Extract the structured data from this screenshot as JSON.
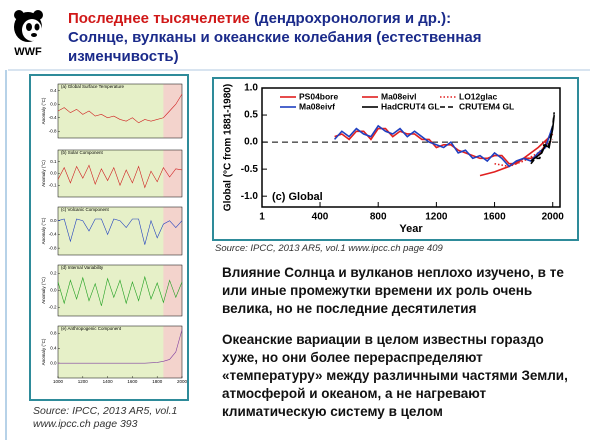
{
  "logo": "WWF",
  "header": {
    "title_red": "Последнее тысячелетие",
    "title_rest": "(дендрохронология и др.):",
    "title_line2": "Солнце, вулканы  и океанские колебания (естественная изменчивость)"
  },
  "left_source": [
    "Source: IPCC, 2013 AR5, vol.1",
    "www.ipcc.ch page 393"
  ],
  "right_source": "Source: IPCC, 2013 AR5, vol.1 www.ipcc.ch page 409",
  "paragraphs": [
    "Влияние Солнца и вулканов неплохо изучено, в те или иные промежутки времени их роль очень велика, но не последние десятилетия",
    "Океанские вариации в целом известны гораздо хуже, но они более перераспределяют «температуру» между различными частями Земли, атмосферой и океаном, а не нагревают климатическую систему в целом"
  ],
  "chart_data": [
    {
      "type": "line",
      "annotation": "(c) Global",
      "xlabel": "Year",
      "ylabel": "Global (°C from 1881-1980)",
      "xlim": [
        1,
        2050
      ],
      "xticks": [
        1,
        400,
        800,
        1200,
        1600,
        2000
      ],
      "ylim": [
        -1.2,
        1.0
      ],
      "yticks": [
        {
          "value": 1.0,
          "label": "1.0"
        },
        0.5,
        {
          "value": 0,
          "label": "0.0"
        },
        -0.5,
        {
          "value": -1.0,
          "label": "-1.0"
        }
      ],
      "series": [
        {
          "name": "PS04bore",
          "color": "#e02020",
          "dash": "solid",
          "x": [
            1500,
            1600,
            1700,
            1800,
            1900,
            2000
          ],
          "values": [
            -0.62,
            -0.55,
            -0.45,
            -0.3,
            -0.1,
            0.15
          ]
        },
        {
          "name": "Ma08eivl",
          "color": "#e02020",
          "dash": "solid",
          "x": [
            500,
            550,
            600,
            650,
            700,
            750,
            800,
            850,
            900,
            950,
            1000,
            1050,
            1100,
            1150,
            1200,
            1250,
            1300,
            1350,
            1400,
            1450,
            1500,
            1550,
            1600,
            1650,
            1700,
            1750,
            1800,
            1850,
            1900,
            1950,
            2000
          ],
          "values": [
            0.1,
            0.15,
            0.05,
            0.2,
            0.2,
            0.05,
            0.25,
            0.25,
            0.1,
            0.2,
            0.15,
            0.15,
            0.05,
            0.05,
            -0.1,
            -0.05,
            -0.05,
            -0.15,
            -0.2,
            -0.25,
            -0.3,
            -0.3,
            -0.25,
            -0.25,
            -0.4,
            -0.4,
            -0.3,
            -0.3,
            -0.25,
            -0.05,
            0.25
          ]
        },
        {
          "name": "LO12glac",
          "color": "#e02020",
          "dash": "dotted",
          "x": [
            1600,
            1700,
            1800,
            1900,
            2000
          ],
          "values": [
            -0.4,
            -0.45,
            -0.35,
            -0.2,
            0.05
          ]
        },
        {
          "name": "Ma08eivf",
          "color": "#2040c0",
          "dash": "solid",
          "x": [
            500,
            550,
            600,
            650,
            700,
            750,
            800,
            850,
            900,
            950,
            1000,
            1050,
            1100,
            1150,
            1200,
            1250,
            1300,
            1350,
            1400,
            1450,
            1500,
            1550,
            1600,
            1650,
            1700,
            1750,
            1800,
            1850,
            1900,
            1950,
            2000
          ],
          "values": [
            0.05,
            0.2,
            0.1,
            0.25,
            0.15,
            0.1,
            0.3,
            0.2,
            0.15,
            0.25,
            0.1,
            0.2,
            0.1,
            0.0,
            -0.05,
            -0.1,
            0.0,
            -0.2,
            -0.15,
            -0.3,
            -0.25,
            -0.35,
            -0.2,
            -0.3,
            -0.45,
            -0.35,
            -0.3,
            -0.35,
            -0.2,
            -0.1,
            0.3
          ]
        },
        {
          "name": "HadCRUT4 GL",
          "color": "#000000",
          "dash": "solid",
          "x": [
            1850,
            1875,
            1900,
            1925,
            1950,
            1975,
            2000,
            2010
          ],
          "values": [
            -0.35,
            -0.3,
            -0.25,
            -0.2,
            -0.05,
            -0.1,
            0.25,
            0.5
          ]
        },
        {
          "name": "CRUTEM4 GL",
          "color": "#000000",
          "dash": "dashed",
          "x": [
            1850,
            1880,
            1910,
            1940,
            1970,
            2000,
            2010
          ],
          "values": [
            -0.4,
            -0.3,
            -0.3,
            -0.05,
            -0.1,
            0.3,
            0.55
          ]
        }
      ]
    },
    {
      "type": "line",
      "title": "(a) Global Surface Temperature",
      "ylabel": "Anomaly (°C)",
      "xlim": [
        1000,
        2000
      ],
      "ylim": [
        -1.0,
        0.6
      ],
      "yticks": [
        -0.8,
        -0.4,
        {
          "value": 0,
          "label": "0.0"
        },
        0.4
      ],
      "series": [
        {
          "color": "#d02020",
          "dash": "solid",
          "x": [
            1000,
            1050,
            1100,
            1150,
            1200,
            1250,
            1300,
            1350,
            1400,
            1450,
            1500,
            1550,
            1600,
            1650,
            1700,
            1750,
            1800,
            1850,
            1900,
            1950,
            2000
          ],
          "values": [
            -0.2,
            -0.1,
            -0.25,
            -0.15,
            -0.3,
            -0.2,
            -0.35,
            -0.3,
            -0.4,
            -0.35,
            -0.45,
            -0.5,
            -0.4,
            -0.55,
            -0.45,
            -0.5,
            -0.45,
            -0.4,
            -0.2,
            0.0,
            0.3
          ]
        }
      ]
    },
    {
      "type": "line",
      "title": "(b) Solar Component",
      "ylabel": "Anomaly (°C)",
      "xlim": [
        1000,
        2000
      ],
      "ylim": [
        -0.2,
        0.2
      ],
      "yticks": [
        -0.1,
        {
          "value": 0,
          "label": "0.0"
        },
        0.1
      ],
      "series": [
        {
          "color": "#d02020",
          "dash": "solid",
          "x": [
            1000,
            1050,
            1100,
            1150,
            1200,
            1250,
            1300,
            1350,
            1400,
            1450,
            1500,
            1550,
            1600,
            1650,
            1700,
            1750,
            1800,
            1850,
            1900,
            1950,
            2000
          ],
          "values": [
            -0.05,
            0.05,
            -0.08,
            0.06,
            -0.04,
            0.07,
            -0.09,
            0.04,
            -0.06,
            0.05,
            -0.1,
            0.03,
            -0.08,
            0.06,
            -0.12,
            0.02,
            -0.07,
            0.05,
            -0.03,
            0.04,
            0.03
          ]
        }
      ]
    },
    {
      "type": "line",
      "title": "(c) Volcanic Component",
      "ylabel": "Anomaly (°C)",
      "xlim": [
        1000,
        2000
      ],
      "ylim": [
        -1.0,
        0.4
      ],
      "yticks": [
        -0.8,
        -0.4,
        {
          "value": 0,
          "label": "0.0"
        }
      ],
      "series": [
        {
          "color": "#2040c0",
          "dash": "solid",
          "x": [
            1000,
            1050,
            1100,
            1150,
            1200,
            1250,
            1300,
            1350,
            1400,
            1450,
            1500,
            1550,
            1600,
            1650,
            1700,
            1750,
            1800,
            1850,
            1900,
            1950,
            2000
          ],
          "values": [
            0,
            0.05,
            -0.6,
            0.05,
            0,
            -0.3,
            0.05,
            0.05,
            -0.4,
            0.05,
            0,
            -0.2,
            0.05,
            0.05,
            -0.7,
            0,
            -0.5,
            -0.1,
            0,
            -0.2,
            0
          ]
        }
      ]
    },
    {
      "type": "line",
      "title": "(d) Internal Variability",
      "ylabel": "Anomaly (°C)",
      "xlim": [
        1000,
        2000
      ],
      "ylim": [
        -0.3,
        0.3
      ],
      "yticks": [
        -0.2,
        {
          "value": 0,
          "label": "0.0"
        },
        0.2
      ],
      "series": [
        {
          "color": "#20a020",
          "dash": "solid",
          "x": [
            1000,
            1050,
            1100,
            1150,
            1200,
            1250,
            1300,
            1350,
            1400,
            1450,
            1500,
            1550,
            1600,
            1650,
            1700,
            1750,
            1800,
            1850,
            1900,
            1950,
            2000
          ],
          "values": [
            0.1,
            -0.15,
            0.12,
            -0.1,
            0.15,
            -0.12,
            0.08,
            -0.18,
            0.14,
            -0.08,
            0.12,
            -0.15,
            0.1,
            -0.12,
            0.16,
            -0.1,
            0.09,
            -0.14,
            0.12,
            -0.08,
            0.1
          ]
        }
      ]
    },
    {
      "type": "line",
      "title": "(e) Anthropogenic Component",
      "ylabel": "Anomaly (°C)",
      "xlim": [
        1000,
        2000
      ],
      "xticks": [
        1000,
        1200,
        1400,
        1600,
        1800,
        2000
      ],
      "ylim": [
        -0.4,
        1.0
      ],
      "yticks": [
        {
          "value": 0,
          "label": "0.0"
        },
        0.4,
        0.8
      ],
      "series": [
        {
          "color": "#8040a0",
          "dash": "solid",
          "x": [
            1000,
            1050,
            1100,
            1150,
            1200,
            1250,
            1300,
            1350,
            1400,
            1450,
            1500,
            1550,
            1600,
            1650,
            1700,
            1750,
            1800,
            1850,
            1900,
            1950,
            2000
          ],
          "values": [
            0,
            0,
            0,
            0,
            0,
            0,
            0,
            0,
            0,
            0,
            0,
            0,
            0,
            0,
            0,
            0.01,
            0.02,
            0.05,
            0.1,
            0.3,
            0.9
          ]
        }
      ]
    }
  ]
}
